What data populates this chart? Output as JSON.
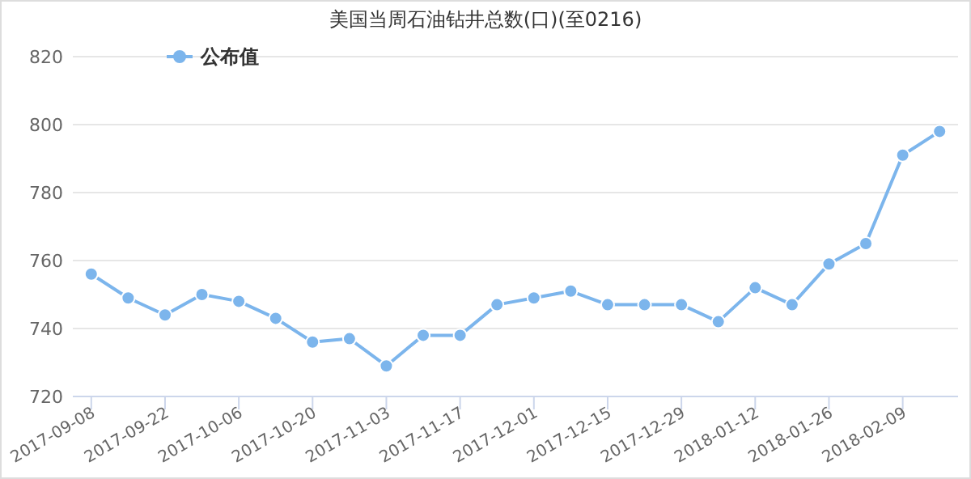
{
  "chart_data": {
    "type": "line",
    "title": "美国当周石油钻井总数(口)(至0216)",
    "categories": [
      "2017-09-08",
      null,
      "2017-09-22",
      null,
      "2017-10-06",
      null,
      "2017-10-20",
      null,
      "2017-11-03",
      null,
      "2017-11-17",
      null,
      "2017-12-01",
      null,
      "2017-12-15",
      null,
      "2017-12-29",
      null,
      "2018-01-12",
      null,
      "2018-01-26",
      null,
      "2018-02-09",
      null
    ],
    "series": [
      {
        "name": "公布值",
        "color": "#7cb5ec",
        "values": [
          756,
          749,
          744,
          750,
          748,
          743,
          736,
          737,
          729,
          738,
          738,
          747,
          749,
          751,
          747,
          747,
          747,
          742,
          752,
          747,
          759,
          765,
          791,
          798
        ]
      }
    ],
    "ylim": [
      720,
      820
    ],
    "yticks": [
      720,
      740,
      760,
      780,
      800,
      820
    ],
    "grid": "y",
    "legend": "top left",
    "marker": "circle",
    "line_style": "solid"
  }
}
